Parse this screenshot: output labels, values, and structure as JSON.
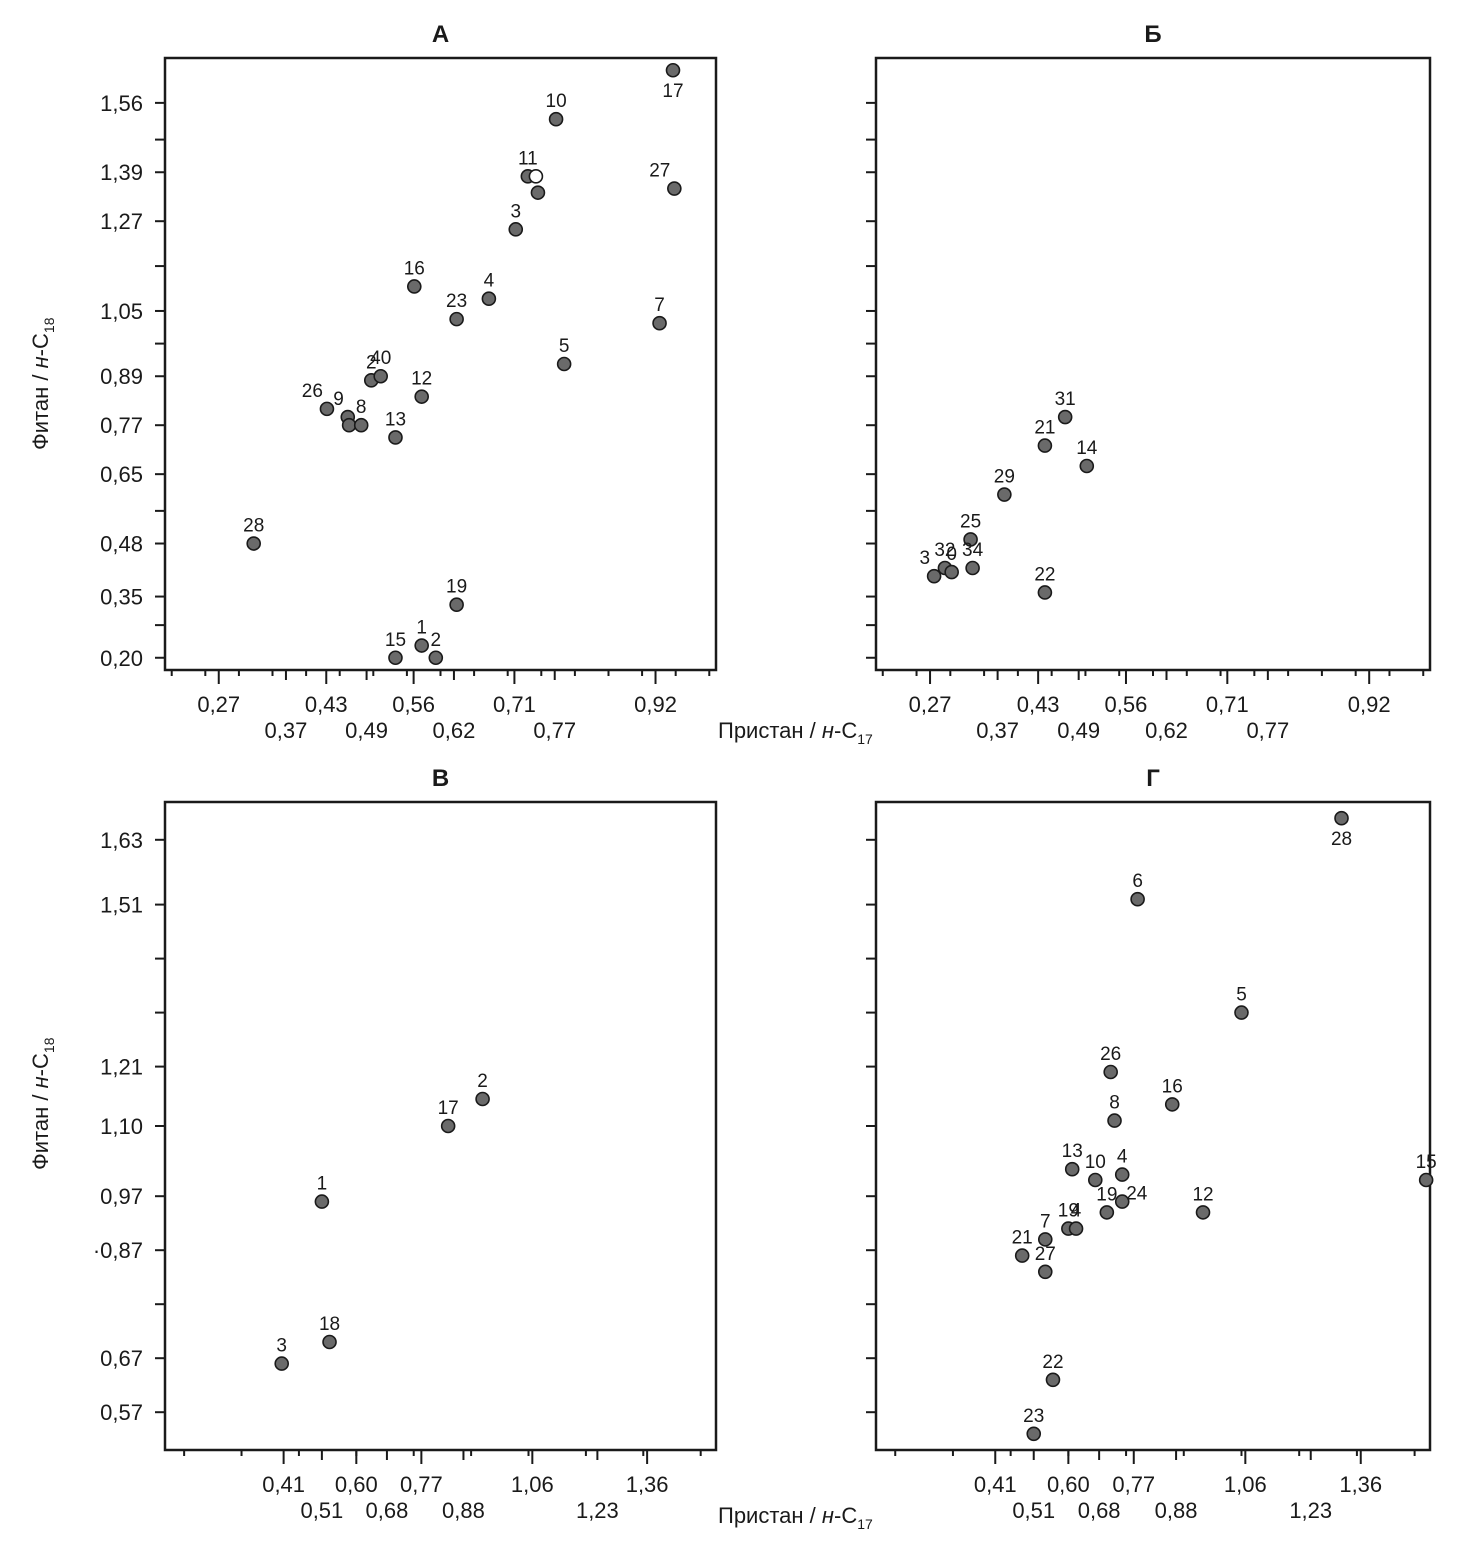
{
  "axis_titles": {
    "y_main": "Фитан /",
    "y_italic": "н",
    "y_suffix": "-C",
    "y_sub": "18",
    "x_main": "Пристан /",
    "x_italic": "н",
    "x_suffix": "-C",
    "x_sub": "17"
  },
  "colors": {
    "marker_fill": "#6a6a6a",
    "marker_stroke": "#1a1a1a",
    "frame": "#1a1a1a"
  },
  "chart_data": [
    {
      "type": "scatter",
      "title": "А",
      "xlim": [
        0.19,
        1.01
      ],
      "ylim": [
        0.17,
        1.67
      ],
      "x_tick_labels_row1": [
        "0,27",
        "0,43",
        "0,56",
        "0,71",
        "0,92"
      ],
      "x_tick_labels_row2": [
        "0,37",
        "0,49",
        "0,62",
        "0,77"
      ],
      "y_tick_labels": [
        "1,56",
        "1,39",
        "1,27",
        "1,05",
        "0,89",
        "0,77",
        "0,65",
        "0,48",
        "0,35",
        "0,20"
      ],
      "points": [
        {
          "label": "17",
          "x": 0.946,
          "y": 1.64,
          "label_pos": "below"
        },
        {
          "label": "10",
          "x": 0.772,
          "y": 1.52,
          "label_pos": "above"
        },
        {
          "label": "11",
          "x": 0.73,
          "y": 1.38,
          "label_pos": "above"
        },
        {
          "label": "",
          "x": 0.742,
          "y": 1.38,
          "hollow": true
        },
        {
          "label": "",
          "x": 0.745,
          "y": 1.34
        },
        {
          "label": "27",
          "x": 0.948,
          "y": 1.35,
          "label_pos": "above-left"
        },
        {
          "label": "3",
          "x": 0.712,
          "y": 1.25,
          "label_pos": "above"
        },
        {
          "label": "16",
          "x": 0.561,
          "y": 1.11,
          "label_pos": "above"
        },
        {
          "label": "4",
          "x": 0.672,
          "y": 1.08,
          "label_pos": "above"
        },
        {
          "label": "23",
          "x": 0.624,
          "y": 1.03,
          "label_pos": "above"
        },
        {
          "label": "7",
          "x": 0.926,
          "y": 1.02,
          "label_pos": "above"
        },
        {
          "label": "5",
          "x": 0.784,
          "y": 0.92,
          "label_pos": "above"
        },
        {
          "label": "2",
          "x": 0.497,
          "y": 0.88,
          "label_pos": "above"
        },
        {
          "label": "40",
          "x": 0.511,
          "y": 0.89,
          "label_pos": "above"
        },
        {
          "label": "12",
          "x": 0.572,
          "y": 0.84,
          "label_pos": "above"
        },
        {
          "label": "26",
          "x": 0.431,
          "y": 0.81,
          "label_pos": "above-left"
        },
        {
          "label": "9",
          "x": 0.462,
          "y": 0.79,
          "label_pos": "above-left"
        },
        {
          "label": "",
          "x": 0.464,
          "y": 0.77
        },
        {
          "label": "8",
          "x": 0.482,
          "y": 0.77,
          "label_pos": "above"
        },
        {
          "label": "13",
          "x": 0.533,
          "y": 0.74,
          "label_pos": "above"
        },
        {
          "label": "28",
          "x": 0.322,
          "y": 0.48,
          "label_pos": "above"
        },
        {
          "label": "19",
          "x": 0.624,
          "y": 0.33,
          "label_pos": "above"
        },
        {
          "label": "1",
          "x": 0.572,
          "y": 0.23,
          "label_pos": "above"
        },
        {
          "label": "2",
          "x": 0.593,
          "y": 0.2,
          "label_pos": "above"
        },
        {
          "label": "15",
          "x": 0.533,
          "y": 0.2,
          "label_pos": "above"
        }
      ]
    },
    {
      "type": "scatter",
      "title": "Б",
      "xlim": [
        0.19,
        1.01
      ],
      "ylim": [
        0.17,
        1.67
      ],
      "x_tick_labels_row1": [
        "0,27",
        "0,43",
        "0,56",
        "0,71",
        "0,92"
      ],
      "x_tick_labels_row2": [
        "0,37",
        "0,49",
        "0,62",
        "0,77"
      ],
      "y_tick_labels": [],
      "points": [
        {
          "label": "31",
          "x": 0.47,
          "y": 0.79,
          "label_pos": "above"
        },
        {
          "label": "21",
          "x": 0.44,
          "y": 0.72,
          "label_pos": "above"
        },
        {
          "label": "14",
          "x": 0.502,
          "y": 0.67,
          "label_pos": "above"
        },
        {
          "label": "29",
          "x": 0.38,
          "y": 0.6,
          "label_pos": "above"
        },
        {
          "label": "25",
          "x": 0.33,
          "y": 0.49,
          "label_pos": "above"
        },
        {
          "label": "32",
          "x": 0.292,
          "y": 0.42,
          "label_pos": "above"
        },
        {
          "label": "3",
          "x": 0.276,
          "y": 0.4,
          "label_pos": "above-left"
        },
        {
          "label": "0",
          "x": 0.302,
          "y": 0.41,
          "label_pos": "above"
        },
        {
          "label": "34",
          "x": 0.333,
          "y": 0.42,
          "label_pos": "above"
        },
        {
          "label": "22",
          "x": 0.44,
          "y": 0.36,
          "label_pos": "above"
        }
      ]
    },
    {
      "type": "scatter",
      "title": "В",
      "xlim": [
        0.1,
        1.54
      ],
      "ylim": [
        0.5,
        1.7
      ],
      "x_tick_labels_row1": [
        "0,41",
        "0,60",
        "0,77",
        "1,06",
        "1,36"
      ],
      "x_tick_labels_row2": [
        "0,51",
        "0,68",
        "0,88",
        "1,23"
      ],
      "y_tick_labels": [
        "1,63",
        "1,51",
        "1,21",
        "1,10",
        "0,97",
        "·0,87",
        "0,67",
        "0,57"
      ],
      "points": [
        {
          "label": "2",
          "x": 0.93,
          "y": 1.15,
          "label_pos": "above"
        },
        {
          "label": "17",
          "x": 0.84,
          "y": 1.1,
          "label_pos": "above"
        },
        {
          "label": "1",
          "x": 0.51,
          "y": 0.96,
          "label_pos": "above"
        },
        {
          "label": "18",
          "x": 0.53,
          "y": 0.7,
          "label_pos": "above"
        },
        {
          "label": "3",
          "x": 0.405,
          "y": 0.66,
          "label_pos": "above"
        }
      ]
    },
    {
      "type": "scatter",
      "title": "Г",
      "xlim": [
        0.1,
        1.54
      ],
      "ylim": [
        0.5,
        1.7
      ],
      "x_tick_labels_row1": [
        "0,41",
        "0,60",
        "0,77",
        "1,06",
        "1,36"
      ],
      "x_tick_labels_row2": [
        "0,51",
        "0,68",
        "0,88",
        "1,23"
      ],
      "y_tick_labels": [],
      "points": [
        {
          "label": "28",
          "x": 1.31,
          "y": 1.67,
          "label_pos": "below"
        },
        {
          "label": "6",
          "x": 0.78,
          "y": 1.52,
          "label_pos": "above"
        },
        {
          "label": "5",
          "x": 1.05,
          "y": 1.31,
          "label_pos": "above"
        },
        {
          "label": "26",
          "x": 0.71,
          "y": 1.2,
          "label_pos": "above"
        },
        {
          "label": "16",
          "x": 0.87,
          "y": 1.14,
          "label_pos": "above"
        },
        {
          "label": "8",
          "x": 0.72,
          "y": 1.11,
          "label_pos": "above"
        },
        {
          "label": "13",
          "x": 0.61,
          "y": 1.02,
          "label_pos": "above"
        },
        {
          "label": "10",
          "x": 0.67,
          "y": 1.0,
          "label_pos": "above"
        },
        {
          "label": "4",
          "x": 0.74,
          "y": 1.01,
          "label_pos": "above"
        },
        {
          "label": "15",
          "x": 1.53,
          "y": 1.0,
          "label_pos": "above"
        },
        {
          "label": "24",
          "x": 0.74,
          "y": 0.96,
          "label_pos": "right"
        },
        {
          "label": "19",
          "x": 0.7,
          "y": 0.94,
          "label_pos": "above"
        },
        {
          "label": "12",
          "x": 0.95,
          "y": 0.94,
          "label_pos": "above"
        },
        {
          "label": "19",
          "x": 0.6,
          "y": 0.91,
          "label_pos": "above"
        },
        {
          "label": "4",
          "x": 0.62,
          "y": 0.91,
          "label_pos": "above"
        },
        {
          "label": "7",
          "x": 0.54,
          "y": 0.89,
          "label_pos": "above"
        },
        {
          "label": "21",
          "x": 0.48,
          "y": 0.86,
          "label_pos": "above"
        },
        {
          "label": "27",
          "x": 0.54,
          "y": 0.83,
          "label_pos": "above"
        },
        {
          "label": "22",
          "x": 0.56,
          "y": 0.63,
          "label_pos": "above"
        },
        {
          "label": "23",
          "x": 0.51,
          "y": 0.53,
          "label_pos": "above"
        }
      ]
    }
  ]
}
